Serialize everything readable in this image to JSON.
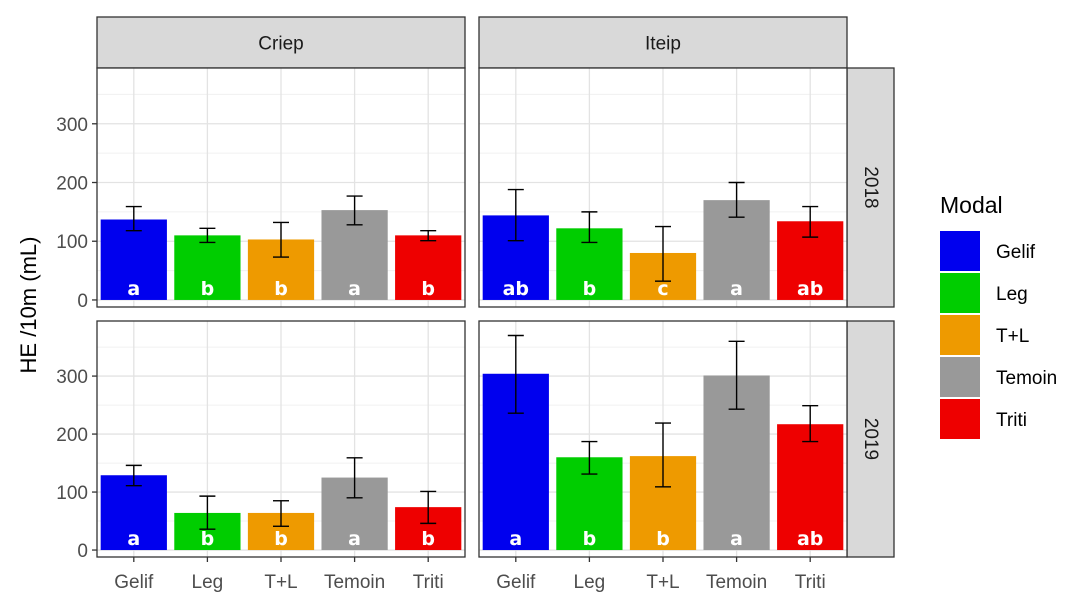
{
  "chart_data": {
    "type": "bar",
    "ylabel": "HE /10m (mL)",
    "xlabel": "",
    "ylim": [
      -12,
      395
    ],
    "yticks": [
      0,
      100,
      200,
      300
    ],
    "categories": [
      "Gelif",
      "Leg",
      "T+L",
      "Temoin",
      "Triti"
    ],
    "colors": {
      "Gelif": "#0000EE",
      "Leg": "#00CD00",
      "T+L": "#EE9A00",
      "Temoin": "#999999",
      "Triti": "#EE0000"
    },
    "col_facets": [
      "Criep",
      "Iteip"
    ],
    "row_facets": [
      "2018",
      "2019"
    ],
    "panels": [
      {
        "col": "Criep",
        "row": "2018",
        "values": [
          137,
          110,
          103,
          153,
          110
        ],
        "err_low": [
          118,
          98,
          73,
          128,
          101
        ],
        "err_high": [
          159,
          122,
          132,
          177,
          118
        ],
        "letters": [
          "a",
          "b",
          "b",
          "a",
          "b"
        ]
      },
      {
        "col": "Iteip",
        "row": "2018",
        "values": [
          144,
          122,
          80,
          170,
          134
        ],
        "err_low": [
          101,
          98,
          32,
          141,
          107
        ],
        "err_high": [
          188,
          150,
          125,
          200,
          159
        ],
        "letters": [
          "ab",
          "b",
          "c",
          "a",
          "ab"
        ]
      },
      {
        "col": "Criep",
        "row": "2019",
        "values": [
          129,
          64,
          64,
          125,
          74
        ],
        "err_low": [
          111,
          36,
          41,
          90,
          46
        ],
        "err_high": [
          146,
          93,
          85,
          159,
          101
        ],
        "letters": [
          "a",
          "b",
          "b",
          "a",
          "b"
        ]
      },
      {
        "col": "Iteip",
        "row": "2019",
        "values": [
          304,
          160,
          162,
          301,
          217
        ],
        "err_low": [
          236,
          131,
          109,
          243,
          187
        ],
        "err_high": [
          370,
          187,
          219,
          360,
          249
        ],
        "letters": [
          "a",
          "b",
          "b",
          "a",
          "ab"
        ]
      }
    ],
    "legend": {
      "title": "Modal",
      "position": "right",
      "entries": [
        "Gelif",
        "Leg",
        "T+L",
        "Temoin",
        "Triti"
      ]
    },
    "grid": true
  }
}
